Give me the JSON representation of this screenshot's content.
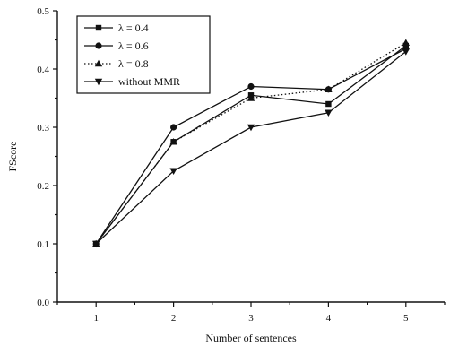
{
  "chart_data": {
    "type": "line",
    "title": "",
    "xlabel": "Number of sentences",
    "ylabel": "FScore",
    "x": [
      1,
      2,
      3,
      4,
      5
    ],
    "xlim": [
      0.5,
      5.5
    ],
    "ylim": [
      0.0,
      0.5
    ],
    "xticks": [
      "1",
      "2",
      "3",
      "4",
      "5"
    ],
    "yticks": [
      "0.0",
      "0.1",
      "0.2",
      "0.3",
      "0.4",
      "0.5"
    ],
    "grid": false,
    "legend_position": "top-left",
    "series": [
      {
        "name": "λ = 0.4",
        "marker": "square",
        "dash": "solid",
        "values": [
          0.1,
          0.275,
          0.355,
          0.34,
          0.44
        ]
      },
      {
        "name": "λ = 0.6",
        "marker": "circle",
        "dash": "solid",
        "values": [
          0.1,
          0.3,
          0.37,
          0.365,
          0.435
        ]
      },
      {
        "name": "λ = 0.8",
        "marker": "triangle-up",
        "dash": "dotted",
        "values": [
          0.1,
          0.275,
          0.35,
          0.365,
          0.445
        ]
      },
      {
        "name": "without MMR",
        "marker": "triangle-down",
        "dash": "solid",
        "values": [
          0.1,
          0.225,
          0.3,
          0.325,
          0.43
        ]
      }
    ]
  }
}
